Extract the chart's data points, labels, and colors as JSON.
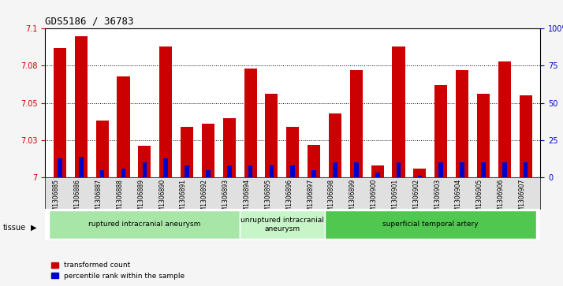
{
  "title": "GDS5186 / 36783",
  "samples": [
    "GSM1306885",
    "GSM1306886",
    "GSM1306887",
    "GSM1306888",
    "GSM1306889",
    "GSM1306890",
    "GSM1306891",
    "GSM1306892",
    "GSM1306893",
    "GSM1306894",
    "GSM1306895",
    "GSM1306896",
    "GSM1306897",
    "GSM1306898",
    "GSM1306899",
    "GSM1306900",
    "GSM1306901",
    "GSM1306902",
    "GSM1306903",
    "GSM1306904",
    "GSM1306905",
    "GSM1306906",
    "GSM1306907"
  ],
  "transformed_count": [
    7.087,
    7.095,
    7.038,
    7.068,
    7.021,
    7.088,
    7.034,
    7.036,
    7.04,
    7.073,
    7.056,
    7.034,
    7.022,
    7.043,
    7.072,
    7.008,
    7.088,
    7.006,
    7.062,
    7.072,
    7.056,
    7.078,
    7.055
  ],
  "percentile_rank": [
    13,
    14,
    5,
    6,
    10,
    13,
    8,
    5,
    8,
    8,
    8,
    8,
    5,
    10,
    10,
    3,
    10,
    1,
    10,
    10,
    10,
    10,
    10
  ],
  "ylim_left": [
    7.0,
    7.1
  ],
  "ylim_right": [
    0,
    100
  ],
  "yticks_left": [
    7.0,
    7.025,
    7.05,
    7.075,
    7.1
  ],
  "yticks_right": [
    0,
    25,
    50,
    75,
    100
  ],
  "ytick_labels_right": [
    "0",
    "25",
    "50",
    "75",
    "100%"
  ],
  "bar_color": "#cc0000",
  "percentile_color": "#0000cc",
  "grid_color": "#000000",
  "background_color": "#f0f0f0",
  "plot_bg_color": "#ffffff",
  "groups": [
    {
      "label": "ruptured intracranial aneurysm",
      "start": 0,
      "end": 9,
      "color": "#90ee90"
    },
    {
      "label": "unruptured intracranial\naneurysm",
      "start": 9,
      "end": 13,
      "color": "#c8f0c8"
    },
    {
      "label": "superficial temporal artery",
      "start": 13,
      "end": 23,
      "color": "#00cc00"
    }
  ],
  "legend_items": [
    {
      "label": "transformed count",
      "color": "#cc0000"
    },
    {
      "label": "percentile rank within the sample",
      "color": "#0000cc"
    }
  ],
  "tissue_label": "tissue",
  "bar_width": 0.6
}
